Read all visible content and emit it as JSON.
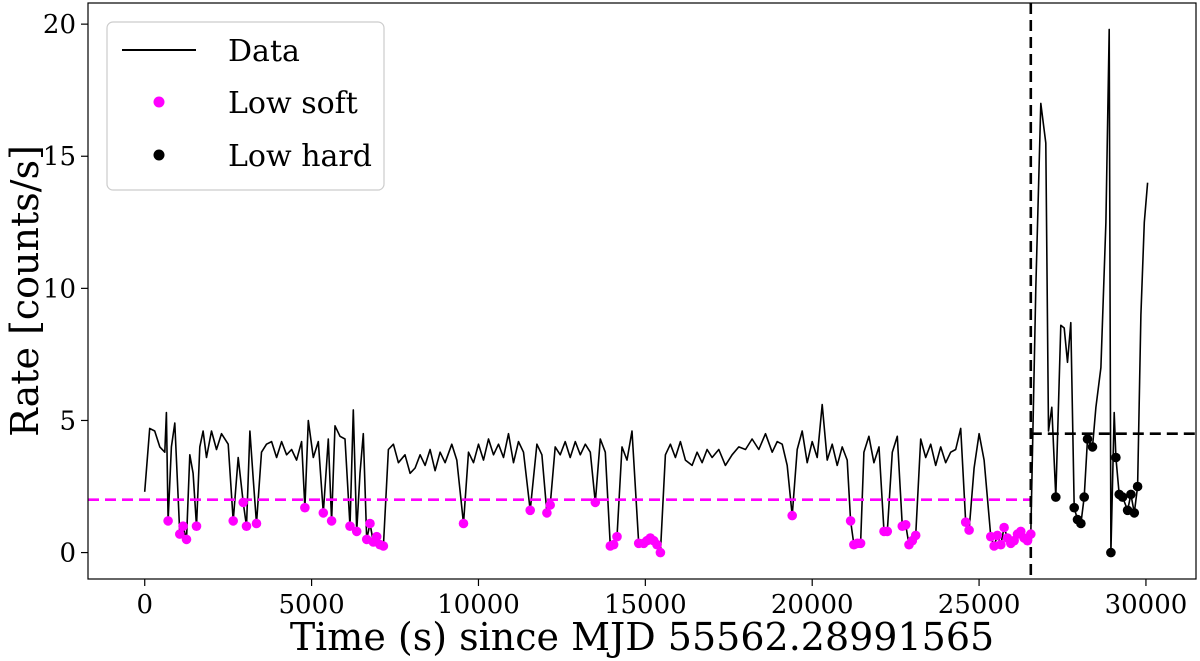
{
  "chart_data": {
    "type": "line",
    "title": "",
    "xlabel": "Time (s) since MJD 55562.28991565",
    "ylabel": "Rate [counts/s]",
    "xlim": [
      -1700,
      31500
    ],
    "ylim": [
      -1.0,
      20.8
    ],
    "xticks": [
      0,
      5000,
      10000,
      15000,
      20000,
      25000,
      30000
    ],
    "yticks": [
      0,
      5,
      10,
      15,
      20
    ],
    "grid": false,
    "legend_position": "top-left",
    "colors": {
      "data": "#000000",
      "low_soft": "#ff00ff",
      "low_hard": "#000000"
    },
    "series": [
      {
        "name": "Data",
        "kind": "line",
        "points": [
          [
            0,
            2.3
          ],
          [
            150,
            4.7
          ],
          [
            300,
            4.6
          ],
          [
            450,
            4.0
          ],
          [
            600,
            3.8
          ],
          [
            650,
            5.3
          ],
          [
            700,
            1.2
          ],
          [
            800,
            4.0
          ],
          [
            900,
            4.9
          ],
          [
            1050,
            0.7
          ],
          [
            1150,
            1.0
          ],
          [
            1250,
            0.5
          ],
          [
            1350,
            3.7
          ],
          [
            1450,
            3.0
          ],
          [
            1550,
            1.0
          ],
          [
            1650,
            4.0
          ],
          [
            1750,
            4.6
          ],
          [
            1850,
            3.6
          ],
          [
            2000,
            4.6
          ],
          [
            2150,
            3.9
          ],
          [
            2300,
            4.5
          ],
          [
            2500,
            4.1
          ],
          [
            2650,
            1.2
          ],
          [
            2800,
            3.6
          ],
          [
            2950,
            1.9
          ],
          [
            3050,
            1.0
          ],
          [
            3150,
            4.6
          ],
          [
            3250,
            2.8
          ],
          [
            3350,
            1.1
          ],
          [
            3500,
            3.8
          ],
          [
            3650,
            4.1
          ],
          [
            3800,
            4.2
          ],
          [
            3950,
            3.6
          ],
          [
            4100,
            4.2
          ],
          [
            4250,
            3.7
          ],
          [
            4400,
            3.9
          ],
          [
            4550,
            3.5
          ],
          [
            4700,
            4.2
          ],
          [
            4800,
            1.7
          ],
          [
            4900,
            5.0
          ],
          [
            5050,
            3.6
          ],
          [
            5200,
            4.2
          ],
          [
            5350,
            1.5
          ],
          [
            5500,
            4.3
          ],
          [
            5600,
            1.2
          ],
          [
            5700,
            4.8
          ],
          [
            5850,
            4.4
          ],
          [
            6000,
            4.3
          ],
          [
            6150,
            1.0
          ],
          [
            6250,
            5.4
          ],
          [
            6350,
            0.8
          ],
          [
            6450,
            3.0
          ],
          [
            6550,
            4.5
          ],
          [
            6650,
            0.5
          ],
          [
            6750,
            1.1
          ],
          [
            6850,
            0.4
          ],
          [
            6950,
            0.6
          ],
          [
            7050,
            0.3
          ],
          [
            7150,
            0.25
          ],
          [
            7300,
            3.9
          ],
          [
            7450,
            4.1
          ],
          [
            7600,
            3.4
          ],
          [
            7800,
            3.7
          ],
          [
            7950,
            3.0
          ],
          [
            8100,
            3.2
          ],
          [
            8250,
            3.7
          ],
          [
            8400,
            3.3
          ],
          [
            8550,
            3.9
          ],
          [
            8700,
            3.1
          ],
          [
            8850,
            3.8
          ],
          [
            9000,
            3.4
          ],
          [
            9200,
            4.1
          ],
          [
            9350,
            3.5
          ],
          [
            9550,
            1.1
          ],
          [
            9700,
            3.8
          ],
          [
            9850,
            3.4
          ],
          [
            10000,
            4.1
          ],
          [
            10150,
            3.5
          ],
          [
            10300,
            4.3
          ],
          [
            10450,
            3.7
          ],
          [
            10600,
            4.1
          ],
          [
            10750,
            3.6
          ],
          [
            10900,
            4.5
          ],
          [
            11050,
            3.4
          ],
          [
            11200,
            4.2
          ],
          [
            11350,
            3.8
          ],
          [
            11550,
            1.6
          ],
          [
            11750,
            4.1
          ],
          [
            11900,
            3.7
          ],
          [
            12050,
            1.5
          ],
          [
            12150,
            1.8
          ],
          [
            12300,
            4.0
          ],
          [
            12450,
            3.7
          ],
          [
            12600,
            4.2
          ],
          [
            12750,
            3.6
          ],
          [
            12900,
            4.2
          ],
          [
            13050,
            3.7
          ],
          [
            13200,
            4.1
          ],
          [
            13350,
            3.8
          ],
          [
            13500,
            1.9
          ],
          [
            13650,
            4.3
          ],
          [
            13800,
            3.8
          ],
          [
            13950,
            0.25
          ],
          [
            14050,
            0.3
          ],
          [
            14150,
            0.6
          ],
          [
            14300,
            4.0
          ],
          [
            14450,
            3.5
          ],
          [
            14600,
            4.6
          ],
          [
            14800,
            0.35
          ],
          [
            14950,
            0.35
          ],
          [
            15050,
            0.45
          ],
          [
            15150,
            0.55
          ],
          [
            15250,
            0.45
          ],
          [
            15350,
            0.3
          ],
          [
            15450,
            0.0
          ],
          [
            15600,
            3.7
          ],
          [
            15750,
            4.1
          ],
          [
            15900,
            3.6
          ],
          [
            16050,
            4.2
          ],
          [
            16200,
            3.5
          ],
          [
            16400,
            3.3
          ],
          [
            16550,
            3.8
          ],
          [
            16700,
            3.4
          ],
          [
            16850,
            3.9
          ],
          [
            17000,
            3.6
          ],
          [
            17200,
            3.9
          ],
          [
            17400,
            3.3
          ],
          [
            17600,
            3.7
          ],
          [
            17800,
            4.0
          ],
          [
            18000,
            3.9
          ],
          [
            18200,
            4.3
          ],
          [
            18400,
            3.9
          ],
          [
            18600,
            4.5
          ],
          [
            18800,
            3.8
          ],
          [
            18950,
            4.2
          ],
          [
            19100,
            4.1
          ],
          [
            19250,
            3.3
          ],
          [
            19400,
            1.4
          ],
          [
            19550,
            3.9
          ],
          [
            19700,
            4.6
          ],
          [
            19850,
            3.4
          ],
          [
            20000,
            4.2
          ],
          [
            20150,
            3.6
          ],
          [
            20300,
            5.6
          ],
          [
            20450,
            3.5
          ],
          [
            20600,
            4.1
          ],
          [
            20750,
            3.3
          ],
          [
            20900,
            4.0
          ],
          [
            21050,
            3.5
          ],
          [
            21150,
            1.2
          ],
          [
            21250,
            0.3
          ],
          [
            21350,
            0.35
          ],
          [
            21450,
            0.35
          ],
          [
            21550,
            3.8
          ],
          [
            21700,
            4.4
          ],
          [
            21850,
            3.4
          ],
          [
            22000,
            4.0
          ],
          [
            22150,
            0.8
          ],
          [
            22250,
            0.8
          ],
          [
            22400,
            3.8
          ],
          [
            22550,
            4.4
          ],
          [
            22700,
            1.0
          ],
          [
            22800,
            1.05
          ],
          [
            22900,
            0.3
          ],
          [
            23000,
            0.45
          ],
          [
            23100,
            0.65
          ],
          [
            23250,
            4.3
          ],
          [
            23400,
            3.6
          ],
          [
            23550,
            4.1
          ],
          [
            23700,
            3.3
          ],
          [
            23850,
            4.0
          ],
          [
            24000,
            3.4
          ],
          [
            24150,
            3.8
          ],
          [
            24300,
            3.9
          ],
          [
            24450,
            4.7
          ],
          [
            24600,
            1.15
          ],
          [
            24700,
            0.85
          ],
          [
            24850,
            3.2
          ],
          [
            25000,
            4.5
          ],
          [
            25150,
            3.5
          ],
          [
            25350,
            0.6
          ],
          [
            25450,
            0.25
          ],
          [
            25550,
            0.65
          ],
          [
            25650,
            0.3
          ],
          [
            25750,
            0.95
          ],
          [
            25850,
            0.55
          ],
          [
            25950,
            0.35
          ],
          [
            26050,
            0.45
          ],
          [
            26150,
            0.7
          ],
          [
            26250,
            0.8
          ],
          [
            26350,
            0.55
          ],
          [
            26450,
            0.45
          ],
          [
            26550,
            0.7
          ],
          [
            26700,
            10.0
          ],
          [
            26850,
            17.0
          ],
          [
            27000,
            15.5
          ],
          [
            27080,
            4.6
          ],
          [
            27180,
            5.5
          ],
          [
            27300,
            2.1
          ],
          [
            27450,
            8.6
          ],
          [
            27550,
            8.5
          ],
          [
            27650,
            7.2
          ],
          [
            27750,
            8.7
          ],
          [
            27850,
            1.7
          ],
          [
            27950,
            1.25
          ],
          [
            28050,
            1.1
          ],
          [
            28150,
            2.1
          ],
          [
            28250,
            4.3
          ],
          [
            28400,
            4.0
          ],
          [
            28500,
            5.5
          ],
          [
            28650,
            7.0
          ],
          [
            28800,
            12.5
          ],
          [
            28900,
            19.8
          ],
          [
            28950,
            0.0
          ],
          [
            29050,
            5.3
          ],
          [
            29100,
            3.6
          ],
          [
            29200,
            2.2
          ],
          [
            29300,
            2.1
          ],
          [
            29450,
            1.6
          ],
          [
            29550,
            2.2
          ],
          [
            29650,
            1.5
          ],
          [
            29750,
            2.5
          ],
          [
            29850,
            9.0
          ],
          [
            29950,
            12.5
          ],
          [
            30050,
            14.0
          ]
        ]
      },
      {
        "name": "Low soft",
        "kind": "markers",
        "points": [
          [
            700,
            1.2
          ],
          [
            1050,
            0.7
          ],
          [
            1150,
            1.0
          ],
          [
            1250,
            0.5
          ],
          [
            1550,
            1.0
          ],
          [
            2650,
            1.2
          ],
          [
            2950,
            1.9
          ],
          [
            3050,
            1.0
          ],
          [
            3350,
            1.1
          ],
          [
            4800,
            1.7
          ],
          [
            5350,
            1.5
          ],
          [
            5600,
            1.2
          ],
          [
            6150,
            1.0
          ],
          [
            6350,
            0.8
          ],
          [
            6650,
            0.5
          ],
          [
            6750,
            1.1
          ],
          [
            6850,
            0.4
          ],
          [
            6950,
            0.6
          ],
          [
            7050,
            0.3
          ],
          [
            7150,
            0.25
          ],
          [
            9550,
            1.1
          ],
          [
            11550,
            1.6
          ],
          [
            12050,
            1.5
          ],
          [
            12150,
            1.8
          ],
          [
            13500,
            1.9
          ],
          [
            13950,
            0.25
          ],
          [
            14050,
            0.3
          ],
          [
            14150,
            0.6
          ],
          [
            14800,
            0.35
          ],
          [
            14950,
            0.35
          ],
          [
            15050,
            0.45
          ],
          [
            15150,
            0.55
          ],
          [
            15250,
            0.45
          ],
          [
            15350,
            0.3
          ],
          [
            15450,
            0.0
          ],
          [
            19400,
            1.4
          ],
          [
            21150,
            1.2
          ],
          [
            21250,
            0.3
          ],
          [
            21350,
            0.35
          ],
          [
            21450,
            0.35
          ],
          [
            22150,
            0.8
          ],
          [
            22250,
            0.8
          ],
          [
            22700,
            1.0
          ],
          [
            22800,
            1.05
          ],
          [
            22900,
            0.3
          ],
          [
            23000,
            0.45
          ],
          [
            23100,
            0.65
          ],
          [
            24600,
            1.15
          ],
          [
            24700,
            0.85
          ],
          [
            25350,
            0.6
          ],
          [
            25450,
            0.25
          ],
          [
            25550,
            0.65
          ],
          [
            25650,
            0.3
          ],
          [
            25750,
            0.95
          ],
          [
            25850,
            0.55
          ],
          [
            25950,
            0.35
          ],
          [
            26050,
            0.45
          ],
          [
            26150,
            0.7
          ],
          [
            26250,
            0.8
          ],
          [
            26350,
            0.55
          ],
          [
            26450,
            0.45
          ],
          [
            26550,
            0.7
          ]
        ]
      },
      {
        "name": "Low hard",
        "kind": "markers",
        "points": [
          [
            27300,
            2.1
          ],
          [
            27850,
            1.7
          ],
          [
            27950,
            1.25
          ],
          [
            28050,
            1.1
          ],
          [
            28150,
            2.1
          ],
          [
            28250,
            4.3
          ],
          [
            28400,
            4.0
          ],
          [
            28950,
            0.0
          ],
          [
            29100,
            3.6
          ],
          [
            29200,
            2.2
          ],
          [
            29300,
            2.1
          ],
          [
            29450,
            1.6
          ],
          [
            29550,
            2.2
          ],
          [
            29650,
            1.5
          ],
          [
            29750,
            2.5
          ]
        ]
      }
    ],
    "reference_lines": [
      {
        "orientation": "horizontal",
        "y": 2.0,
        "x_from": -1700,
        "x_to": 26550,
        "color": "#ff00ff",
        "style": "dashed"
      },
      {
        "orientation": "vertical",
        "x": 26550,
        "color": "#000000",
        "style": "dashed"
      },
      {
        "orientation": "horizontal",
        "y": 4.5,
        "x_from": 26550,
        "x_to": 31500,
        "color": "#000000",
        "style": "dashed"
      }
    ]
  }
}
